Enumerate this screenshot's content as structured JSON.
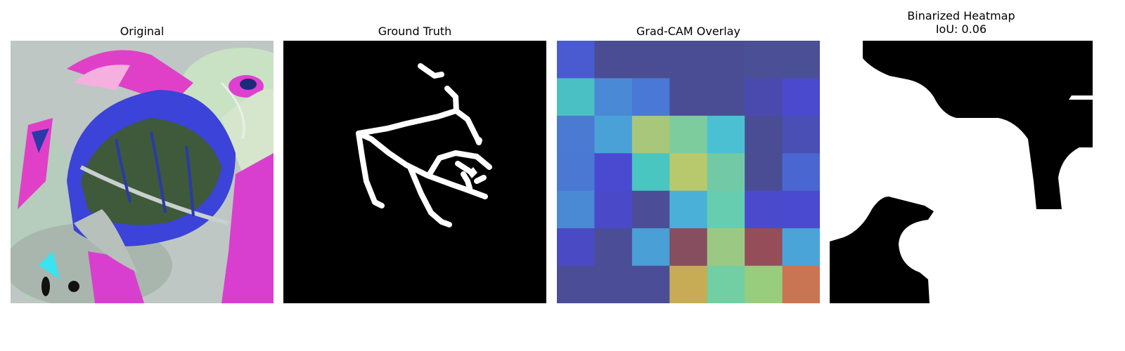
{
  "panels": [
    {
      "title": "Original",
      "subtitle": ""
    },
    {
      "title": "Ground Truth",
      "subtitle": ""
    },
    {
      "title": "Grad-CAM Overlay",
      "subtitle": ""
    },
    {
      "title": "Binarized Heatmap",
      "subtitle": "IoU: 0.06"
    }
  ],
  "chart_data": [
    {
      "type": "image",
      "title": "Original",
      "description_free": true
    },
    {
      "type": "image",
      "title": "Ground Truth",
      "colors": {
        "background": "#000000",
        "mask": "#ffffff"
      }
    },
    {
      "type": "heatmap",
      "title": "Grad-CAM Overlay",
      "rows": 7,
      "cols": 7,
      "cells": [
        [
          "#4a5bd1",
          "#4b4d94",
          "#4b4d94",
          "#4b4d94",
          "#4b4d94",
          "#4b4f96",
          "#4b4f96"
        ],
        [
          "#4bc0c4",
          "#4a89d6",
          "#4a78d6",
          "#4b4d94",
          "#4b4d94",
          "#4a4aae",
          "#4a4acf"
        ],
        [
          "#4a7ad2",
          "#4aa1d8",
          "#a8c77a",
          "#7ccc9e",
          "#4ac0d2",
          "#4b4d94",
          "#4a4fb5"
        ],
        [
          "#4a78d2",
          "#4a4ad0",
          "#4ac6c0",
          "#b8c86c",
          "#72c9a6",
          "#4b4d94",
          "#4a66d0"
        ],
        [
          "#4a89d4",
          "#4a4ac9",
          "#4b4d96",
          "#4ab0d8",
          "#66cdb0",
          "#4a4acc",
          "#4a4ad0"
        ],
        [
          "#4a4ac4",
          "#4b4d96",
          "#4a9fd6",
          "#874e5f",
          "#9bc984",
          "#954d5a",
          "#4aa4d8"
        ],
        [
          "#4b4d96",
          "#4b4d96",
          "#4b4d96",
          "#c8ab55",
          "#72cfa3",
          "#99cd7e",
          "#c97554"
        ]
      ]
    },
    {
      "type": "image",
      "title": "Binarized Heatmap",
      "subtitle": "IoU: 0.06",
      "iou": 0.06,
      "colors": {
        "background": "#ffffff",
        "mask": "#000000"
      }
    }
  ]
}
